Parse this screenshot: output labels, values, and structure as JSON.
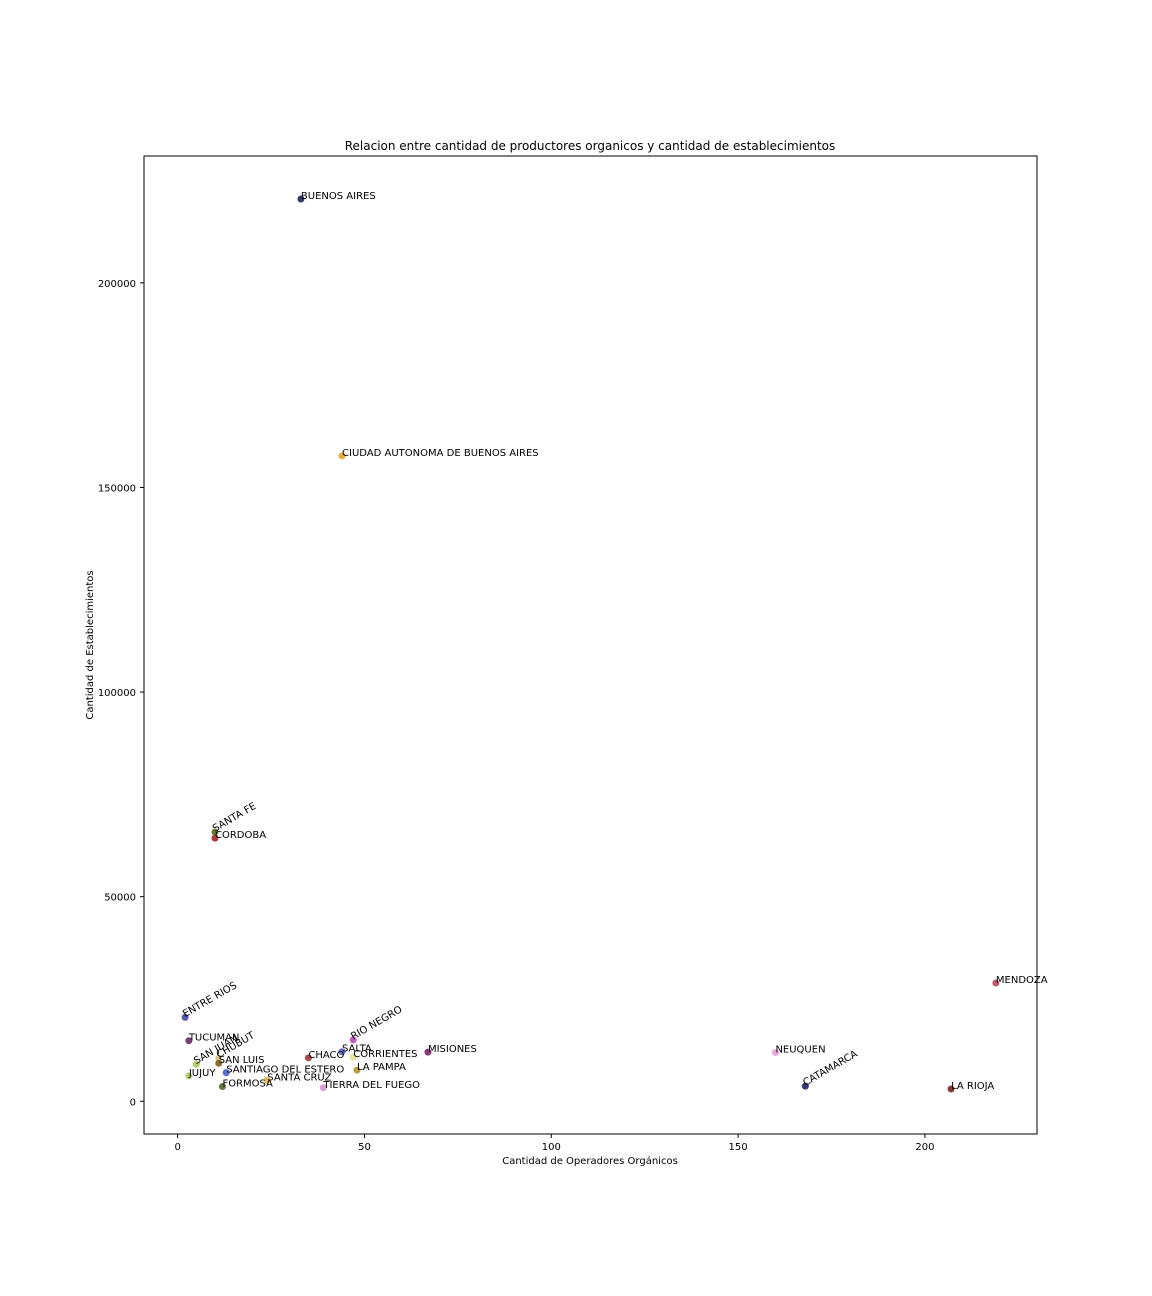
{
  "chart_data": {
    "type": "scatter",
    "title": "Relacion entre cantidad de productores organicos y cantidad de establecimientos",
    "xlabel": "Cantidad de Operadores Orgánicos",
    "ylabel": "Cantidad de Establecimientos",
    "xlim": [
      -9,
      230
    ],
    "ylim": [
      -8000,
      231000
    ],
    "xticks": [
      0,
      50,
      100,
      150,
      200
    ],
    "yticks": [
      0,
      50000,
      100000,
      150000,
      200000
    ],
    "grid": false,
    "points": [
      {
        "name": "BUENOS AIRES",
        "x": 33,
        "y": 220500,
        "color": "#2e3a6b",
        "rotate": false
      },
      {
        "name": "CIUDAD AUTONOMA DE BUENOS AIRES",
        "x": 44,
        "y": 157700,
        "color": "#e6b33a",
        "rotate": false
      },
      {
        "name": "SANTA FE",
        "x": 10,
        "y": 65800,
        "color": "#6b7a2e",
        "rotate": true
      },
      {
        "name": "CORDOBA",
        "x": 10,
        "y": 64300,
        "color": "#b03a3a",
        "rotate": false
      },
      {
        "name": "MENDOZA",
        "x": 219,
        "y": 28900,
        "color": "#c2556b",
        "rotate": false
      },
      {
        "name": "ENTRE RIOS",
        "x": 2,
        "y": 20500,
        "color": "#5a5ab0",
        "rotate": true
      },
      {
        "name": "TUCUMAN",
        "x": 3,
        "y": 14800,
        "color": "#7b3a7b",
        "rotate": false
      },
      {
        "name": "RIO NEGRO",
        "x": 47,
        "y": 15000,
        "color": "#c25ac2",
        "rotate": true
      },
      {
        "name": "CHUBUT",
        "x": 11,
        "y": 10500,
        "color": "#d9c98a",
        "rotate": true
      },
      {
        "name": "SAN JUAN",
        "x": 5,
        "y": 9000,
        "color": "#b5cf6b",
        "rotate": true
      },
      {
        "name": "SAN LUIS",
        "x": 11,
        "y": 9300,
        "color": "#8c6d31",
        "rotate": false
      },
      {
        "name": "SALTA",
        "x": 44,
        "y": 12100,
        "color": "#6b6ecf",
        "rotate": false
      },
      {
        "name": "CHACO",
        "x": 35,
        "y": 10600,
        "color": "#ad494a",
        "rotate": false
      },
      {
        "name": "CORRIENTES",
        "x": 47,
        "y": 10800,
        "color": "#e7e4a0",
        "rotate": false
      },
      {
        "name": "MISIONES",
        "x": 67,
        "y": 12000,
        "color": "#8a3a7b",
        "rotate": false
      },
      {
        "name": "NEUQUEN",
        "x": 160,
        "y": 11900,
        "color": "#e7a8e0",
        "rotate": false
      },
      {
        "name": "SANTIAGO DEL ESTERO",
        "x": 13,
        "y": 7000,
        "color": "#5a6bcf",
        "rotate": false
      },
      {
        "name": "LA PAMPA",
        "x": 48,
        "y": 7600,
        "color": "#bd9e39",
        "rotate": false
      },
      {
        "name": "JUJUY",
        "x": 3,
        "y": 6200,
        "color": "#b5cf6b",
        "rotate": false
      },
      {
        "name": "SANTA CRUZ",
        "x": 24,
        "y": 5100,
        "color": "#e7ba52",
        "rotate": false
      },
      {
        "name": "FORMOSA",
        "x": 12,
        "y": 3600,
        "color": "#637939",
        "rotate": false
      },
      {
        "name": "TIERRA DEL FUEGO",
        "x": 39,
        "y": 3300,
        "color": "#de9ed6",
        "rotate": false
      },
      {
        "name": "CATAMARCA",
        "x": 168,
        "y": 3700,
        "color": "#393b79",
        "rotate": true
      },
      {
        "name": "LA RIOJA",
        "x": 207,
        "y": 3000,
        "color": "#843c39",
        "rotate": false
      }
    ]
  }
}
